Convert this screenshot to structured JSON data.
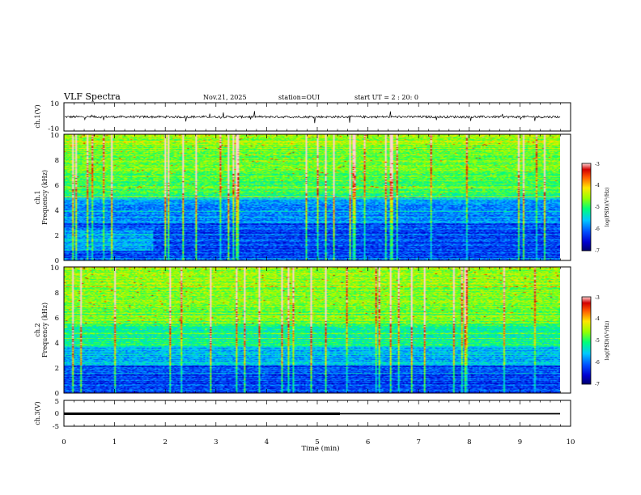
{
  "header": {
    "title": "VLF Spectra",
    "date": "Nov.21, 2025",
    "station": "station=OUI",
    "start": "start  UT =  2 : 20: 0"
  },
  "chart_data": [
    {
      "type": "line",
      "panel": "ch1-waveform",
      "ylabel": "ch.1(V)",
      "ylim": [
        -10,
        10
      ],
      "yticks": [
        "10",
        "-10"
      ],
      "xlim": [
        0,
        10
      ],
      "series": [
        {
          "name": "ch.1",
          "description": "noisy waveform around 0 V with sporadic spikes up to about ±5 V"
        }
      ]
    },
    {
      "type": "heatmap",
      "panel": "ch1-spectrogram",
      "ylabel": [
        "ch.1",
        "Frequency (kHz)"
      ],
      "ylim": [
        0,
        10
      ],
      "yticks": [
        "0",
        "2",
        "4",
        "6",
        "8",
        "10"
      ],
      "xlim": [
        0,
        9.8
      ],
      "colorbar": {
        "label": "log(PSD)(V²/Hz)",
        "range": [
          -7,
          -3
        ],
        "ticks": [
          "-3",
          "-4",
          "-5",
          "-6",
          "-7"
        ]
      }
    },
    {
      "type": "heatmap",
      "panel": "ch2-spectrogram",
      "ylabel": [
        "ch.2",
        "Frequency (kHz)"
      ],
      "ylim": [
        0,
        10
      ],
      "yticks": [
        "0",
        "2",
        "4",
        "6",
        "8",
        "10"
      ],
      "xlim": [
        0,
        9.8
      ],
      "colorbar": {
        "label": "log(PSD)(V²/Hz)",
        "range": [
          -7,
          -3
        ],
        "ticks": [
          "-3",
          "-4",
          "-5",
          "-6",
          "-7"
        ]
      }
    },
    {
      "type": "line",
      "panel": "ch3-waveform",
      "ylabel": "ch.3(V)",
      "ylim": [
        -5,
        5
      ],
      "yticks": [
        "5",
        "0",
        "-5"
      ],
      "xlim": [
        0,
        10
      ],
      "series": [
        {
          "name": "ch.3",
          "values_description": "flat line near 0 V",
          "x": [
            0,
            9.8
          ],
          "y": [
            0,
            0
          ],
          "thick_until_min": 5.5
        }
      ]
    }
  ],
  "x_axis": {
    "label": "Time (min)",
    "ticks": [
      "0",
      "1",
      "2",
      "3",
      "4",
      "5",
      "6",
      "7",
      "8",
      "9",
      "10"
    ],
    "range": [
      0,
      10
    ]
  }
}
